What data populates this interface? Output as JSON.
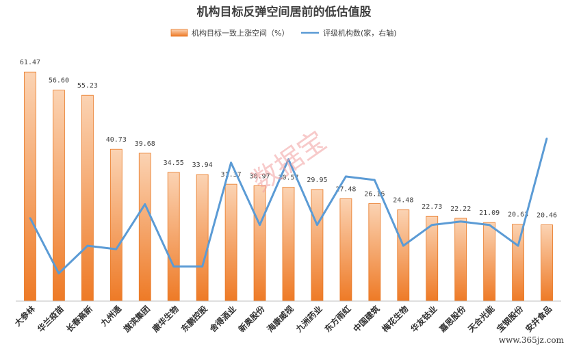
{
  "chart_data": {
    "type": "bar",
    "title": "机构目标反弹空间居前的低估值股",
    "categories": [
      "大参林",
      "华兰疫苗",
      "长春高新",
      "九州通",
      "旗滨集团",
      "康华生物",
      "东鹏控股",
      "舍得酒业",
      "新奥股份",
      "海康威视",
      "九洲药业",
      "东方雨虹",
      "中国建筑",
      "梅花生物",
      "华友钴业",
      "嘉思股份",
      "天合光能",
      "宝钢股份",
      "安井食品"
    ],
    "series": [
      {
        "name": "机构目标一致上涨空间（%）",
        "kind": "bar",
        "axis": "left",
        "values": [
          61.47,
          56.6,
          55.23,
          40.73,
          39.68,
          34.55,
          33.94,
          31.37,
          30.97,
          30.57,
          29.95,
          27.48,
          26.16,
          24.48,
          22.73,
          22.22,
          21.09,
          20.63,
          20.46
        ],
        "labels": [
          "61.47",
          "56.60",
          "55.23",
          "40.73",
          "39.68",
          "34.55",
          "33.94",
          "31.37",
          "30.97",
          "30.57",
          "29.95",
          "27.48",
          "26.16",
          "24.48",
          "22.73",
          "22.22",
          "21.09",
          "20.63",
          "20.46"
        ]
      },
      {
        "name": "评级机构数(家，右轴)",
        "kind": "line",
        "axis": "right",
        "values": [
          12,
          4,
          8,
          7.5,
          14,
          5,
          5,
          20,
          11,
          20.5,
          11,
          18,
          17.5,
          8,
          11,
          11.5,
          11,
          8,
          23.5
        ]
      }
    ],
    "ylim_left": [
      0,
      65
    ],
    "ylim_right": [
      0,
      35
    ],
    "legend_position": "top-center",
    "grid": false,
    "colors": {
      "bar_top": "#fbd3b3",
      "bar_bottom": "#ee7a26",
      "bar_edge": "#e87722",
      "line": "#5b9bd5",
      "axis": "#bfbfbf"
    }
  },
  "watermark": "数据宝",
  "site_mark": "www.365jz.com"
}
